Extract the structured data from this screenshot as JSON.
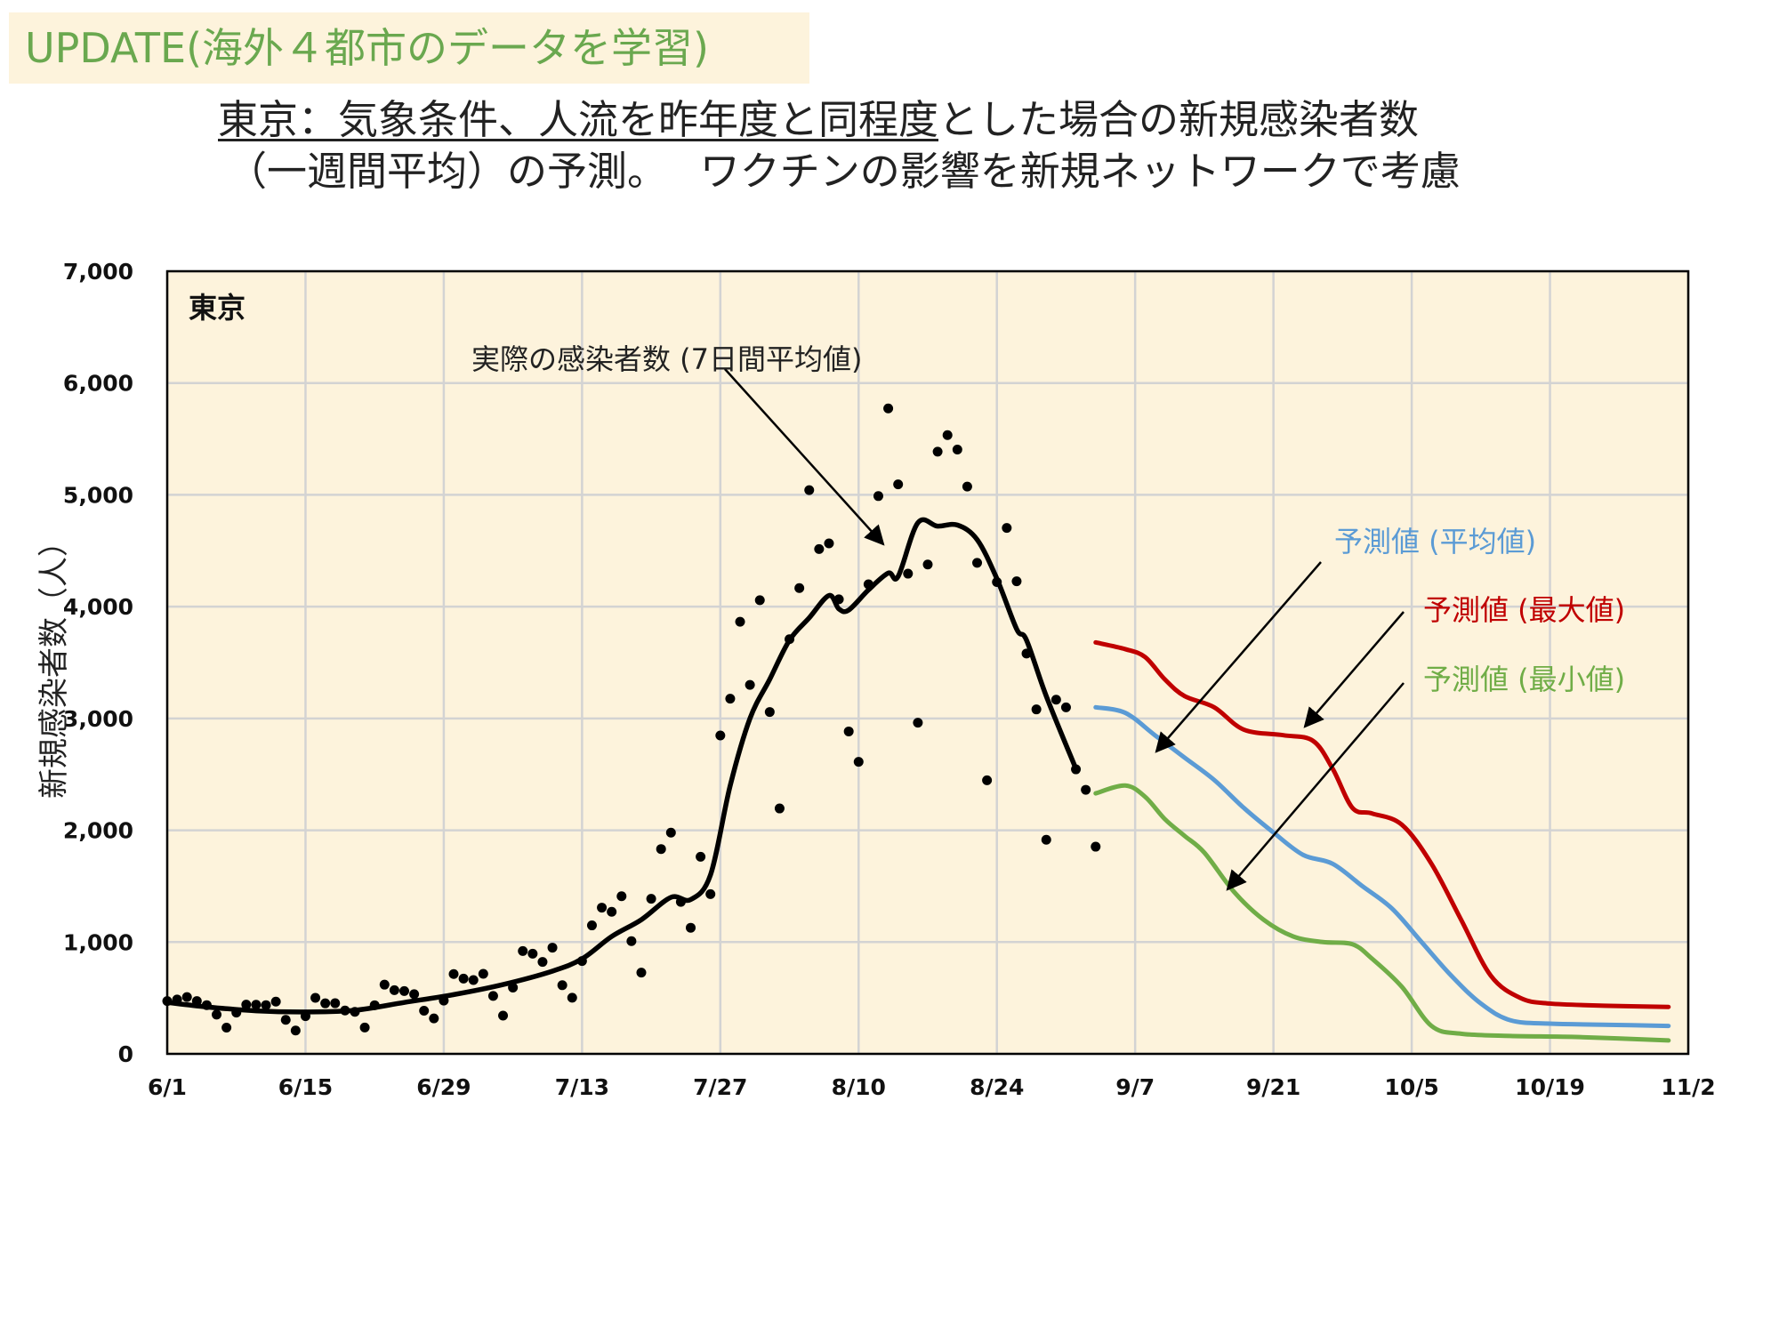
{
  "badge": "UPDATE(海外４都市のデータを学習)",
  "title": {
    "line1_underlined": "東京：気象条件、人流を昨年度と同程度",
    "line1_rest": "とした場合の新規感染者数",
    "line2": "（一週間平均）の予測。　 ワクチンの影響を新規ネットワークで考慮"
  },
  "colors": {
    "actual": "#000000",
    "pred_mean": "#5b9bd5",
    "pred_max": "#c00000",
    "pred_min": "#70ad47",
    "plot_bg": "#fdf3dc",
    "grid": "#d3d3d3"
  },
  "chart_data": {
    "type": "line",
    "panel_label": "東京",
    "ylabel": "新規感染者数（人）",
    "ylim": [
      0,
      7000
    ],
    "yticks": [
      0,
      1000,
      2000,
      3000,
      4000,
      5000,
      6000,
      7000
    ],
    "ytick_labels": [
      "0",
      "1,000",
      "2,000",
      "3,000",
      "4,000",
      "5,000",
      "6,000",
      "7,000"
    ],
    "xlim": [
      "6/1",
      "11/2"
    ],
    "xtick_labels": [
      "6/1",
      "6/15",
      "6/29",
      "7/13",
      "7/27",
      "8/10",
      "8/24",
      "9/7",
      "9/21",
      "10/5",
      "10/19",
      "11/2"
    ],
    "grid": true,
    "annotations": {
      "actual": "実際の感染者数 (7日間平均値)",
      "pred_mean": "予測値 (平均値)",
      "pred_max": "予測値 (最大値)",
      "pred_min": "予測値 (最小値)"
    },
    "daily_points": [
      [
        "6/1",
        472
      ],
      [
        "6/2",
        486
      ],
      [
        "6/3",
        508
      ],
      [
        "6/4",
        472
      ],
      [
        "6/5",
        436
      ],
      [
        "6/6",
        351
      ],
      [
        "6/7",
        235
      ],
      [
        "6/8",
        369
      ],
      [
        "6/9",
        440
      ],
      [
        "6/10",
        439
      ],
      [
        "6/11",
        436
      ],
      [
        "6/12",
        467
      ],
      [
        "6/13",
        304
      ],
      [
        "6/14",
        209
      ],
      [
        "6/15",
        337
      ],
      [
        "6/16",
        501
      ],
      [
        "6/17",
        452
      ],
      [
        "6/18",
        453
      ],
      [
        "6/19",
        388
      ],
      [
        "6/20",
        376
      ],
      [
        "6/21",
        236
      ],
      [
        "6/22",
        435
      ],
      [
        "6/23",
        619
      ],
      [
        "6/24",
        570
      ],
      [
        "6/25",
        562
      ],
      [
        "6/26",
        534
      ],
      [
        "6/27",
        386
      ],
      [
        "6/28",
        317
      ],
      [
        "6/29",
        476
      ],
      [
        "6/30",
        714
      ],
      [
        "7/1",
        673
      ],
      [
        "7/2",
        660
      ],
      [
        "7/3",
        716
      ],
      [
        "7/4",
        518
      ],
      [
        "7/5",
        342
      ],
      [
        "7/6",
        593
      ],
      [
        "7/7",
        920
      ],
      [
        "7/8",
        896
      ],
      [
        "7/9",
        822
      ],
      [
        "7/10",
        950
      ],
      [
        "7/11",
        614
      ],
      [
        "7/12",
        502
      ],
      [
        "7/13",
        830
      ],
      [
        "7/14",
        1149
      ],
      [
        "7/15",
        1308
      ],
      [
        "7/16",
        1271
      ],
      [
        "7/17",
        1410
      ],
      [
        "7/18",
        1008
      ],
      [
        "7/19",
        727
      ],
      [
        "7/20",
        1387
      ],
      [
        "7/21",
        1832
      ],
      [
        "7/22",
        1979
      ],
      [
        "7/23",
        1359
      ],
      [
        "7/24",
        1128
      ],
      [
        "7/25",
        1763
      ],
      [
        "7/26",
        1429
      ],
      [
        "7/27",
        2848
      ],
      [
        "7/28",
        3177
      ],
      [
        "7/29",
        3865
      ],
      [
        "7/30",
        3300
      ],
      [
        "7/31",
        4058
      ],
      [
        "8/1",
        3058
      ],
      [
        "8/2",
        2195
      ],
      [
        "8/3",
        3709
      ],
      [
        "8/4",
        4166
      ],
      [
        "8/5",
        5042
      ],
      [
        "8/6",
        4515
      ],
      [
        "8/7",
        4566
      ],
      [
        "8/8",
        4066
      ],
      [
        "8/9",
        2884
      ],
      [
        "8/10",
        2612
      ],
      [
        "8/11",
        4200
      ],
      [
        "8/12",
        4989
      ],
      [
        "8/13",
        5773
      ],
      [
        "8/14",
        5094
      ],
      [
        "8/15",
        4295
      ],
      [
        "8/16",
        2962
      ],
      [
        "8/17",
        4377
      ],
      [
        "8/18",
        5386
      ],
      [
        "8/19",
        5534
      ],
      [
        "8/20",
        5405
      ],
      [
        "8/21",
        5074
      ],
      [
        "8/22",
        4392
      ],
      [
        "8/23",
        2447
      ],
      [
        "8/24",
        4220
      ],
      [
        "8/25",
        4704
      ],
      [
        "8/26",
        4227
      ],
      [
        "8/27",
        3581
      ],
      [
        "8/28",
        3081
      ],
      [
        "8/29",
        1915
      ],
      [
        "8/30",
        3168
      ],
      [
        "8/31",
        3099
      ],
      [
        "9/1",
        2545
      ],
      [
        "9/2",
        2362
      ],
      [
        "9/3",
        1853
      ]
    ],
    "series": [
      {
        "name": "実際の感染者数 (7日間平均値)",
        "points": [
          [
            "6/1",
            460
          ],
          [
            "6/5",
            420
          ],
          [
            "6/10",
            385
          ],
          [
            "6/15",
            375
          ],
          [
            "6/20",
            390
          ],
          [
            "6/25",
            460
          ],
          [
            "6/30",
            530
          ],
          [
            "7/5",
            620
          ],
          [
            "7/10",
            740
          ],
          [
            "7/13",
            850
          ],
          [
            "7/16",
            1050
          ],
          [
            "7/19",
            1200
          ],
          [
            "7/22",
            1400
          ],
          [
            "7/24",
            1380
          ],
          [
            "7/26",
            1600
          ],
          [
            "7/28",
            2400
          ],
          [
            "7/30",
            3000
          ],
          [
            "8/1",
            3350
          ],
          [
            "8/3",
            3700
          ],
          [
            "8/5",
            3900
          ],
          [
            "8/7",
            4100
          ],
          [
            "8/8",
            3980
          ],
          [
            "8/9",
            3970
          ],
          [
            "8/11",
            4150
          ],
          [
            "8/13",
            4300
          ],
          [
            "8/14",
            4270
          ],
          [
            "8/16",
            4750
          ],
          [
            "8/18",
            4720
          ],
          [
            "8/20",
            4730
          ],
          [
            "8/22",
            4600
          ],
          [
            "8/24",
            4250
          ],
          [
            "8/26",
            3800
          ],
          [
            "8/27",
            3700
          ],
          [
            "8/29",
            3200
          ],
          [
            "9/1",
            2550
          ]
        ]
      },
      {
        "name": "予測値 (最大値)",
        "points": [
          [
            "9/3",
            3680
          ],
          [
            "9/6",
            3620
          ],
          [
            "9/8",
            3550
          ],
          [
            "9/10",
            3350
          ],
          [
            "9/12",
            3200
          ],
          [
            "9/15",
            3100
          ],
          [
            "9/18",
            2900
          ],
          [
            "9/22",
            2850
          ],
          [
            "9/25",
            2800
          ],
          [
            "9/27",
            2550
          ],
          [
            "9/29",
            2200
          ],
          [
            "10/1",
            2150
          ],
          [
            "10/4",
            2050
          ],
          [
            "10/7",
            1700
          ],
          [
            "10/10",
            1200
          ],
          [
            "10/13",
            700
          ],
          [
            "10/16",
            500
          ],
          [
            "10/19",
            450
          ],
          [
            "10/25",
            430
          ],
          [
            "10/31",
            420
          ]
        ]
      },
      {
        "name": "予測値 (平均値)",
        "points": [
          [
            "9/3",
            3100
          ],
          [
            "9/6",
            3050
          ],
          [
            "9/9",
            2850
          ],
          [
            "9/12",
            2650
          ],
          [
            "9/15",
            2450
          ],
          [
            "9/18",
            2200
          ],
          [
            "9/21",
            1980
          ],
          [
            "9/24",
            1780
          ],
          [
            "9/27",
            1700
          ],
          [
            "9/30",
            1500
          ],
          [
            "10/3",
            1300
          ],
          [
            "10/6",
            1000
          ],
          [
            "10/9",
            700
          ],
          [
            "10/12",
            450
          ],
          [
            "10/15",
            300
          ],
          [
            "10/19",
            270
          ],
          [
            "10/25",
            260
          ],
          [
            "10/31",
            250
          ]
        ]
      },
      {
        "name": "予測値 (最小値)",
        "points": [
          [
            "9/3",
            2330
          ],
          [
            "9/6",
            2400
          ],
          [
            "9/8",
            2300
          ],
          [
            "9/10",
            2100
          ],
          [
            "9/12",
            1950
          ],
          [
            "9/14",
            1800
          ],
          [
            "9/17",
            1450
          ],
          [
            "9/20",
            1200
          ],
          [
            "9/23",
            1050
          ],
          [
            "9/26",
            1000
          ],
          [
            "9/29",
            980
          ],
          [
            "10/1",
            850
          ],
          [
            "10/4",
            600
          ],
          [
            "10/7",
            250
          ],
          [
            "10/10",
            180
          ],
          [
            "10/15",
            160
          ],
          [
            "10/22",
            150
          ],
          [
            "10/31",
            120
          ]
        ]
      }
    ]
  }
}
